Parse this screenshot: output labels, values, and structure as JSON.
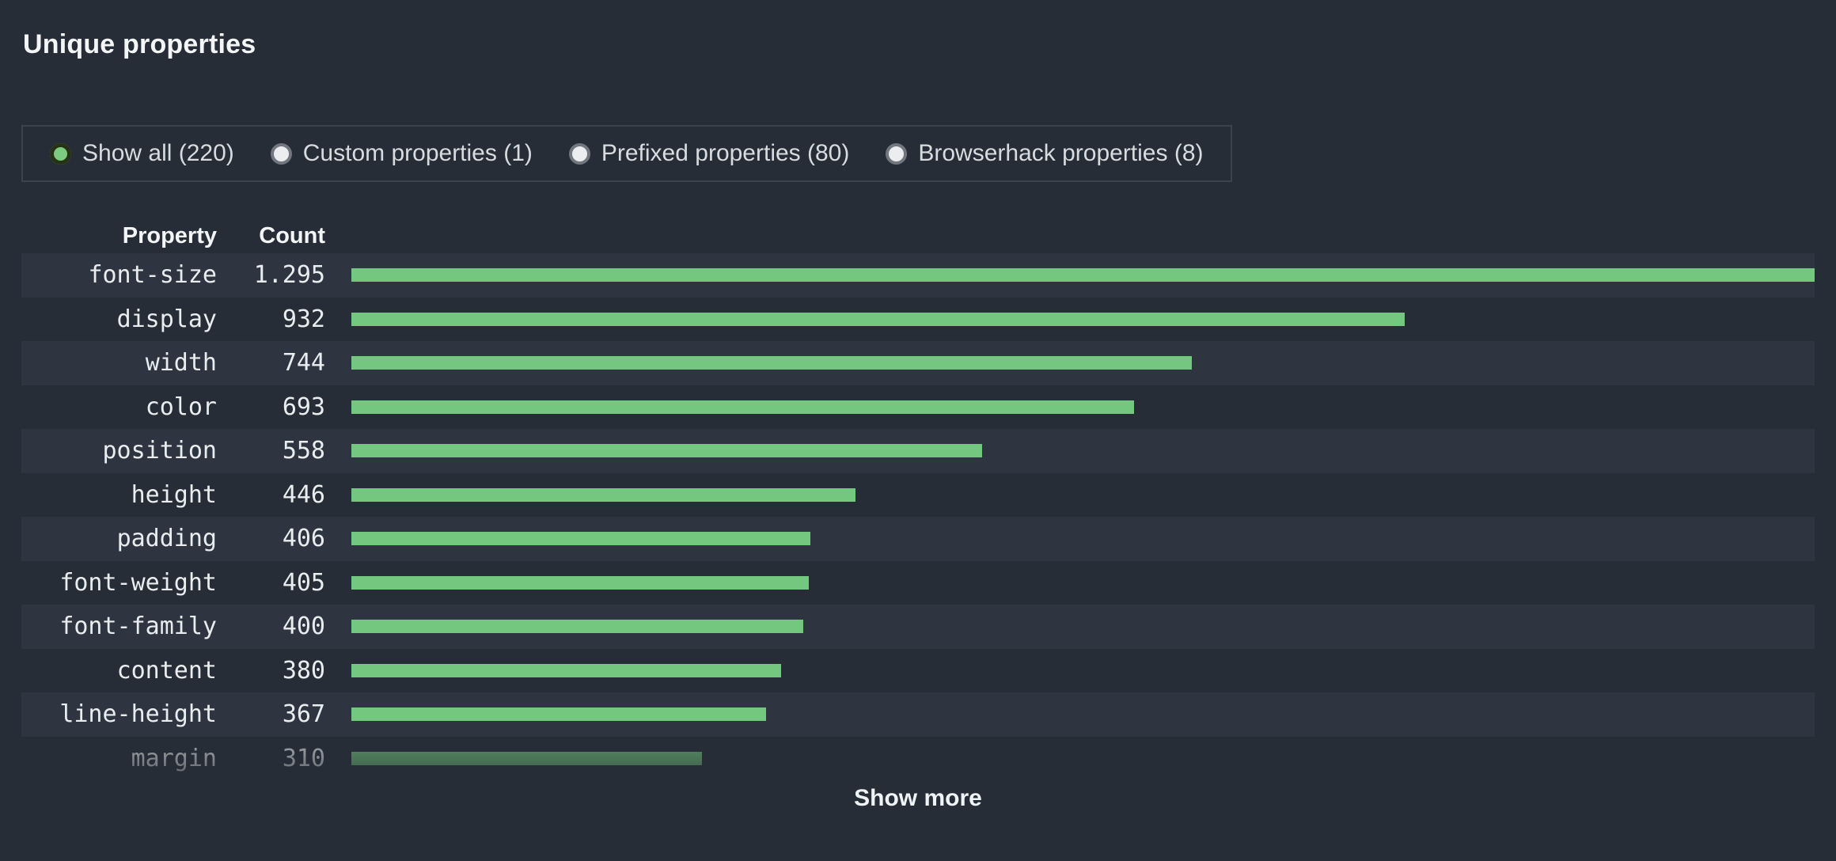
{
  "title": "Unique properties",
  "filters": [
    {
      "name": "show-all",
      "label": "Show all (220)",
      "selected": true
    },
    {
      "name": "custom-properties",
      "label": "Custom properties (1)",
      "selected": false
    },
    {
      "name": "prefixed-properties",
      "label": "Prefixed properties (80)",
      "selected": false
    },
    {
      "name": "browserhack-properties",
      "label": "Browserhack properties (8)",
      "selected": false
    }
  ],
  "table": {
    "property_header": "Property",
    "count_header": "Count"
  },
  "chart_data": {
    "type": "bar",
    "orientation": "horizontal",
    "title": "Unique properties",
    "categories": [
      "font-size",
      "display",
      "width",
      "color",
      "position",
      "height",
      "padding",
      "font-weight",
      "font-family",
      "content",
      "line-height",
      "margin"
    ],
    "values": [
      1295,
      932,
      744,
      693,
      558,
      446,
      406,
      405,
      400,
      380,
      367,
      310
    ],
    "value_labels": [
      "1.295",
      "932",
      "744",
      "693",
      "558",
      "446",
      "406",
      "405",
      "400",
      "380",
      "367",
      "310"
    ],
    "xlim": [
      0,
      1295
    ],
    "grid": false,
    "legend": false,
    "bar_color": "#74c77e",
    "last_row_faded": true
  },
  "show_more_label": "Show more",
  "colors": {
    "background": "#262d36",
    "row_stripe": "#2e3540",
    "bar_green": "#74c77e",
    "radio_selected_green": "#7dca81",
    "filter_border": "#3c434e",
    "text_primary": "#f3f5f7",
    "text_secondary": "#d8dbdf"
  }
}
